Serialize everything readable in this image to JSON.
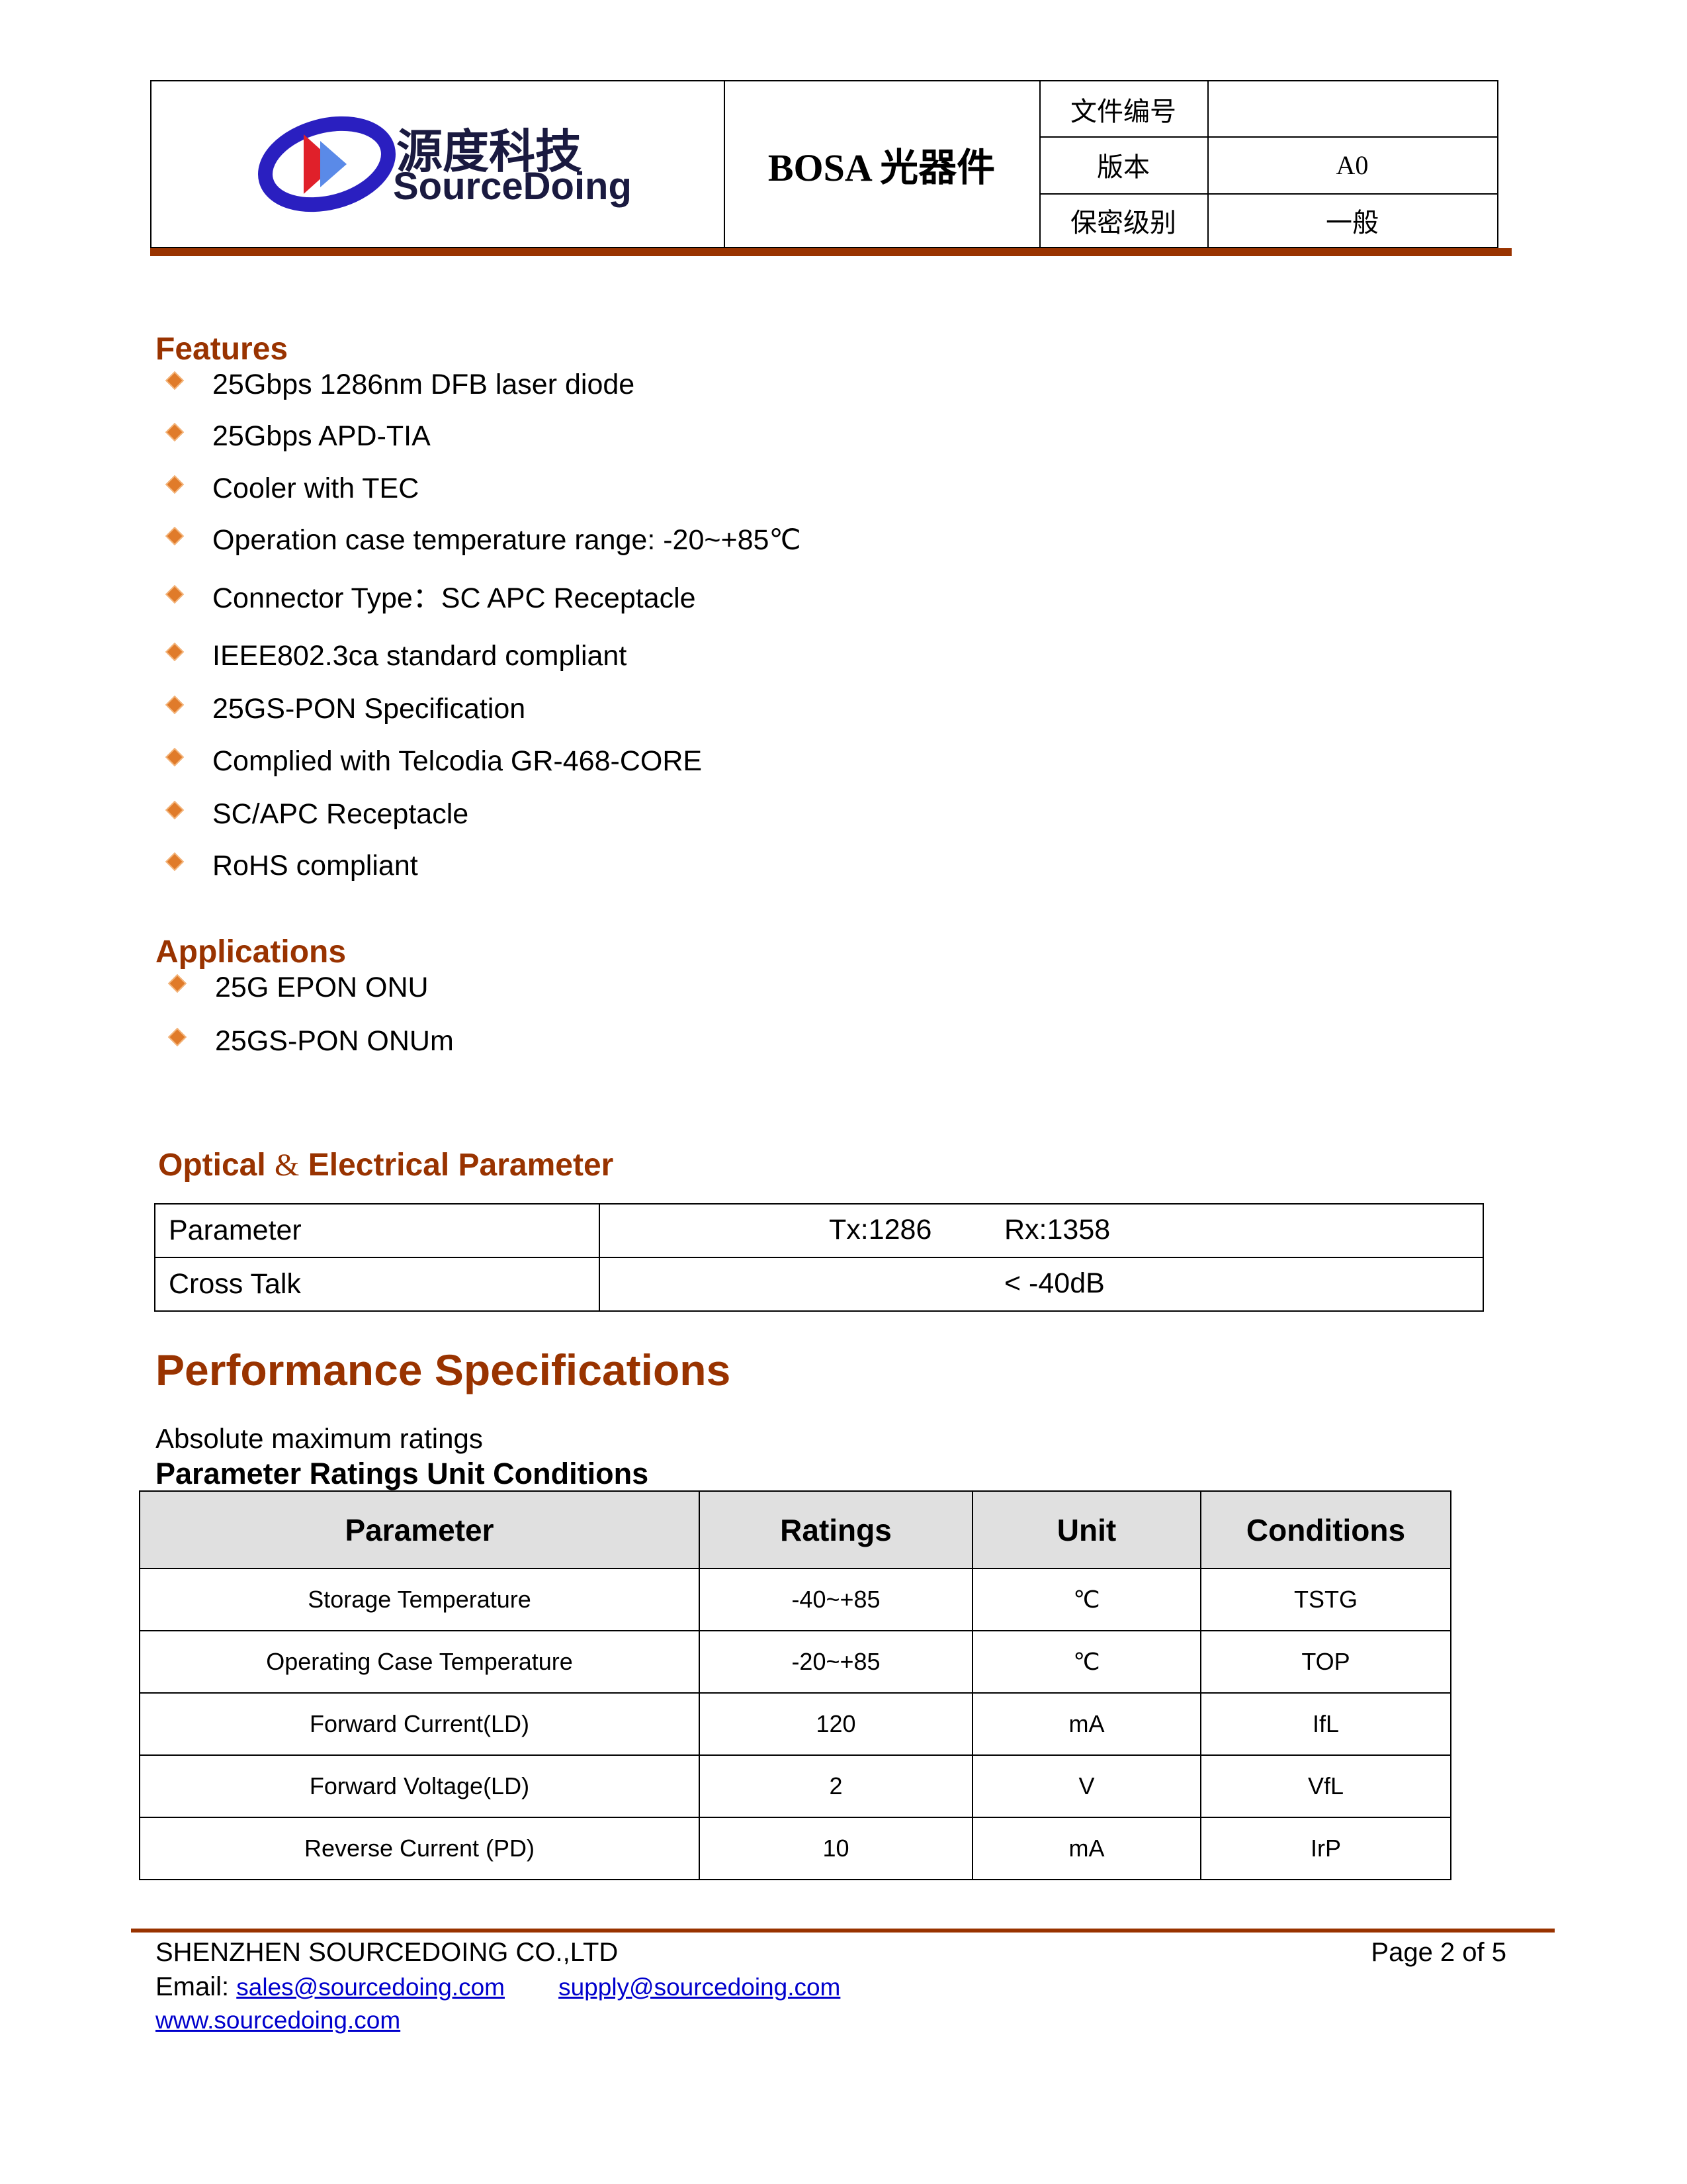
{
  "header": {
    "logo_cn": "源度科技",
    "logo_en": "SourceDoing",
    "title": "BOSA 光器件",
    "fields": [
      {
        "label": "文件编号",
        "value": ""
      },
      {
        "label": "版本",
        "value": "A0"
      },
      {
        "label": "保密级别",
        "value": "一般"
      }
    ]
  },
  "features": {
    "heading": "Features",
    "items": [
      "25Gbps 1286nm DFB laser diode",
      "25Gbps APD-TIA",
      "Cooler with TEC",
      "Operation case temperature range: -20~+85℃",
      "Connector Type：SC APC Receptacle",
      "IEEE802.3ca standard compliant",
      "25GS-PON Specification",
      "Complied with Telcodia GR-468-CORE",
      "SC/APC Receptacle",
      "RoHS compliant"
    ]
  },
  "applications": {
    "heading": "Applications",
    "items": [
      "25G EPON ONU",
      "25GS-PON ONUm"
    ]
  },
  "optical": {
    "heading_a": "Optical",
    "heading_amp": "&",
    "heading_b": "Electrical Parameter",
    "rows": [
      {
        "param": "Parameter",
        "tx": "Tx:1286",
        "rx": "Rx:1358"
      },
      {
        "param": "Cross Talk",
        "value": "< -40dB"
      }
    ]
  },
  "performance": {
    "heading": "Performance Specifications",
    "subtitle": "Absolute maximum ratings",
    "bold_line": "Parameter Ratings Unit Conditions",
    "columns": [
      "Parameter",
      "Ratings",
      "Unit",
      "Conditions"
    ],
    "rows": [
      [
        "Storage Temperature",
        "-40~+85",
        "℃",
        "TSTG"
      ],
      [
        "Operating Case Temperature",
        "-20~+85",
        "℃",
        "TOP"
      ],
      [
        "Forward Current(LD)",
        "120",
        "mA",
        "IfL"
      ],
      [
        "Forward Voltage(LD)",
        "2",
        "V",
        "VfL"
      ],
      [
        "Reverse Current (PD)",
        "10",
        "mA",
        "IrP"
      ]
    ]
  },
  "footer": {
    "company": "SHENZHEN SOURCEDOING CO.,LTD",
    "page": "Page 2 of 5",
    "email_label": "Email:",
    "email1": "sales@sourcedoing.com",
    "email2": "supply@sourcedoing.com",
    "website": "www.sourcedoing.com"
  },
  "colors": {
    "accent": "#993300",
    "bullet": "#e07b2a",
    "link": "#0000cc",
    "table_header": "#e0e0e0"
  }
}
